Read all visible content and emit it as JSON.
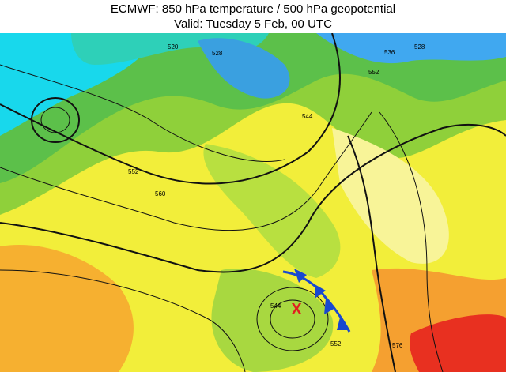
{
  "header": {
    "title": "ECMWF: 850 hPa temperature / 500 hPa geopotential",
    "subtitle": "Valid: Tuesday 5 Feb, 00 UTC"
  },
  "map": {
    "marker": "X",
    "contour_labels": [
      "520",
      "528",
      "536",
      "528",
      "552",
      "544",
      "552",
      "560",
      "544",
      "552",
      "576"
    ]
  }
}
